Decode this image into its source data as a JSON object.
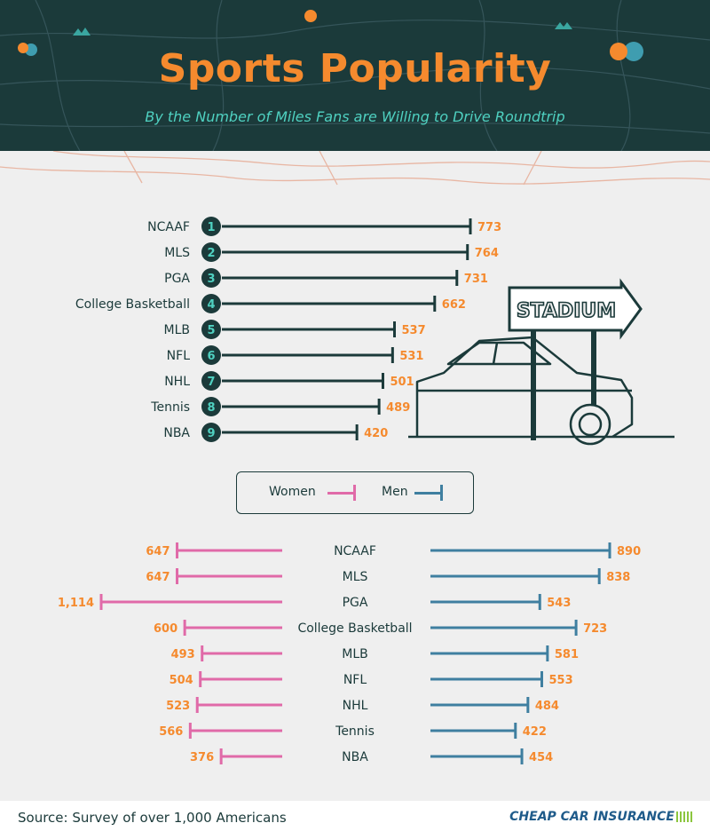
{
  "header": {
    "title": "Sports Popularity",
    "subtitle": "By the Number of Miles Fans are Willing to Drive Roundtrip"
  },
  "colors": {
    "header_bg": "#1b3a3a",
    "accent_orange": "#f58a2e",
    "teal": "#4fd1c1",
    "women": "#e06aa8",
    "men": "#3f7fa0"
  },
  "chart_data": [
    {
      "type": "bar",
      "orientation": "horizontal",
      "title": "",
      "categories": [
        "NCAAF",
        "MLS",
        "PGA",
        "College Basketball",
        "MLB",
        "NFL",
        "NHL",
        "Tennis",
        "NBA"
      ],
      "ranks": [
        "1",
        "2",
        "3",
        "4",
        "5",
        "6",
        "7",
        "8",
        "9"
      ],
      "values": [
        773,
        764,
        731,
        662,
        537,
        531,
        501,
        489,
        420
      ],
      "value_labels": [
        "773",
        "764",
        "731",
        "662",
        "537",
        "531",
        "501",
        "489",
        "420"
      ],
      "xlim": [
        0,
        773
      ]
    },
    {
      "type": "bar",
      "orientation": "horizontal-diverging",
      "title": "",
      "categories": [
        "NCAAF",
        "MLS",
        "PGA",
        "College Basketball",
        "MLB",
        "NFL",
        "NHL",
        "Tennis",
        "NBA"
      ],
      "series": [
        {
          "name": "Women",
          "values": [
            647,
            647,
            1114,
            600,
            493,
            504,
            523,
            566,
            376
          ],
          "labels": [
            "647",
            "647",
            "1,114",
            "600",
            "493",
            "504",
            "523",
            "566",
            "376"
          ]
        },
        {
          "name": "Men",
          "values": [
            890,
            838,
            543,
            723,
            581,
            553,
            484,
            422,
            454
          ],
          "labels": [
            "890",
            "838",
            "543",
            "723",
            "581",
            "553",
            "484",
            "422",
            "454"
          ]
        }
      ],
      "legend": "top-center"
    }
  ],
  "illustration": {
    "sign_text": "STADIUM"
  },
  "footer": {
    "source": "Source: Survey of over 1,000 Americans",
    "brand": "CHEAP CAR INSURANCE"
  }
}
